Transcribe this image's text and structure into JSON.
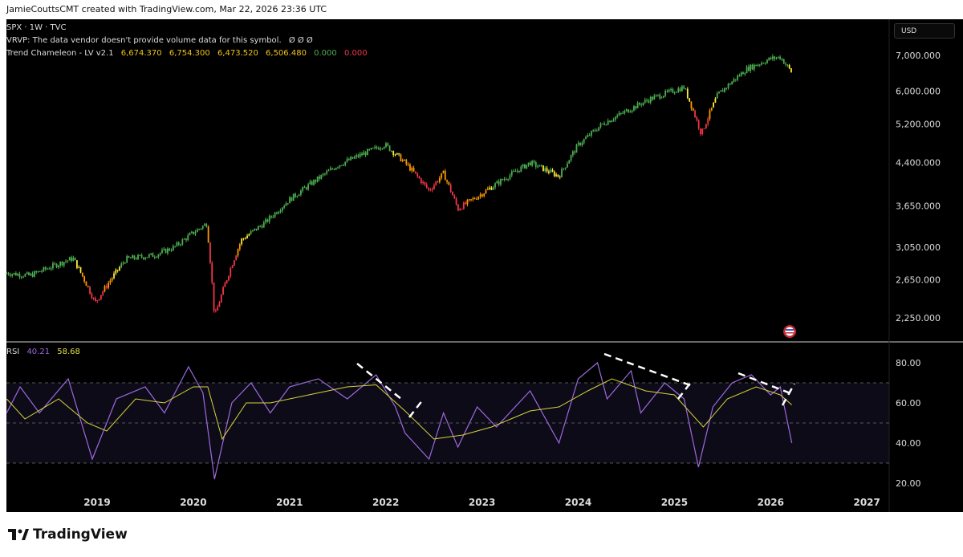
{
  "caption": "JamieCouttsCMT created with TradingView.com, Mar 22, 2026 23:36 UTC",
  "legend": {
    "symbol": "SPX · 1W · TVC",
    "vrvp": "VRVP: The data vendor doesn't provide volume data for this symbol.",
    "vrvp_values": "Ø  Ø  Ø",
    "indicator": "Trend Chameleon - LV v2.1",
    "indicator_values": [
      "6,674.370",
      "6,754.300",
      "6,473.520",
      "6,506.480"
    ],
    "indicator_extra": [
      "0.000",
      "0.000"
    ],
    "rsi_label": "RSI",
    "rsi_value": "40.21",
    "rsi_ma_value": "58.68"
  },
  "currency_button": "USD",
  "logo_text": "TradingView",
  "colors": {
    "bull": "#4caf50",
    "yellow": "#ffeb3b",
    "orange": "#ff9800",
    "red": "#f23645",
    "rsi": "#9c6ade",
    "rsi_ma": "#d4d43a",
    "extra_green": "#4caf50",
    "extra_red": "#f23645"
  },
  "chart_data": [
    {
      "type": "candlestick",
      "scale": "log",
      "ylim": [
        2100,
        7400
      ],
      "y_ticks": [
        "7,000.000",
        "6,000.000",
        "5,200.000",
        "4,400.000",
        "3,650.000",
        "3,050.000",
        "2,650.000",
        "2,250.000"
      ],
      "y_tick_values": [
        7000,
        6000,
        5200,
        4400,
        3650,
        3050,
        2650,
        2250
      ],
      "x_ticks": [
        "2019",
        "2020",
        "2021",
        "2022",
        "2023",
        "2024",
        "2025",
        "2026",
        "2027"
      ],
      "close_path": [
        [
          2018.06,
          2730
        ],
        [
          2018.3,
          2700
        ],
        [
          2018.75,
          2910
        ],
        [
          2018.98,
          2400
        ],
        [
          2019.3,
          2900
        ],
        [
          2019.6,
          2950
        ],
        [
          2019.8,
          3050
        ],
        [
          2020.0,
          3250
        ],
        [
          2020.14,
          3380
        ],
        [
          2020.22,
          2250
        ],
        [
          2020.5,
          3150
        ],
        [
          2020.75,
          3400
        ],
        [
          2021.0,
          3750
        ],
        [
          2021.5,
          4350
        ],
        [
          2021.99,
          4760
        ],
        [
          2022.2,
          4400
        ],
        [
          2022.45,
          3900
        ],
        [
          2022.6,
          4200
        ],
        [
          2022.75,
          3600
        ],
        [
          2023.0,
          3850
        ],
        [
          2023.5,
          4400
        ],
        [
          2023.8,
          4150
        ],
        [
          2024.0,
          4750
        ],
        [
          2024.25,
          5200
        ],
        [
          2024.5,
          5500
        ],
        [
          2024.75,
          5800
        ],
        [
          2025.1,
          6100
        ],
        [
          2025.28,
          4980
        ],
        [
          2025.45,
          5900
        ],
        [
          2025.75,
          6600
        ],
        [
          2026.0,
          6900
        ],
        [
          2026.1,
          6950
        ],
        [
          2026.22,
          6500
        ]
      ]
    },
    {
      "type": "line",
      "title": "RSI",
      "ylim": [
        15,
        85
      ],
      "y_ticks": [
        "80.00",
        "60.00",
        "40.00",
        "20.00"
      ],
      "y_tick_values": [
        80,
        60,
        40,
        20
      ],
      "bands": [
        30,
        50,
        70
      ],
      "series": [
        {
          "name": "RSI",
          "points": [
            [
              2018.06,
              55
            ],
            [
              2018.2,
              68
            ],
            [
              2018.4,
              55
            ],
            [
              2018.7,
              72
            ],
            [
              2018.95,
              32
            ],
            [
              2019.2,
              62
            ],
            [
              2019.5,
              68
            ],
            [
              2019.7,
              55
            ],
            [
              2019.95,
              78
            ],
            [
              2020.1,
              65
            ],
            [
              2020.22,
              22
            ],
            [
              2020.4,
              60
            ],
            [
              2020.6,
              70
            ],
            [
              2020.8,
              55
            ],
            [
              2021.0,
              68
            ],
            [
              2021.3,
              72
            ],
            [
              2021.6,
              62
            ],
            [
              2021.9,
              74
            ],
            [
              2022.1,
              58
            ],
            [
              2022.2,
              45
            ],
            [
              2022.45,
              32
            ],
            [
              2022.6,
              55
            ],
            [
              2022.75,
              38
            ],
            [
              2022.95,
              58
            ],
            [
              2023.15,
              48
            ],
            [
              2023.5,
              66
            ],
            [
              2023.8,
              40
            ],
            [
              2024.0,
              72
            ],
            [
              2024.2,
              80
            ],
            [
              2024.3,
              62
            ],
            [
              2024.55,
              76
            ],
            [
              2024.65,
              55
            ],
            [
              2024.9,
              70
            ],
            [
              2025.1,
              62
            ],
            [
              2025.25,
              28
            ],
            [
              2025.4,
              58
            ],
            [
              2025.6,
              70
            ],
            [
              2025.8,
              74
            ],
            [
              2026.0,
              64
            ],
            [
              2026.1,
              68
            ],
            [
              2026.22,
              40
            ]
          ]
        },
        {
          "name": "RSI MA",
          "points": [
            [
              2018.06,
              62
            ],
            [
              2018.25,
              52
            ],
            [
              2018.6,
              62
            ],
            [
              2018.9,
              50
            ],
            [
              2019.1,
              46
            ],
            [
              2019.4,
              62
            ],
            [
              2019.7,
              60
            ],
            [
              2020.0,
              68
            ],
            [
              2020.15,
              68
            ],
            [
              2020.3,
              42
            ],
            [
              2020.55,
              60
            ],
            [
              2020.8,
              60
            ],
            [
              2021.2,
              64
            ],
            [
              2021.6,
              68
            ],
            [
              2021.9,
              69
            ],
            [
              2022.2,
              56
            ],
            [
              2022.5,
              42
            ],
            [
              2022.8,
              44
            ],
            [
              2023.1,
              48
            ],
            [
              2023.5,
              56
            ],
            [
              2023.8,
              58
            ],
            [
              2024.1,
              66
            ],
            [
              2024.35,
              72
            ],
            [
              2024.7,
              66
            ],
            [
              2025.0,
              64
            ],
            [
              2025.3,
              48
            ],
            [
              2025.55,
              62
            ],
            [
              2025.85,
              68
            ],
            [
              2026.1,
              64
            ],
            [
              2026.22,
              59
            ]
          ]
        }
      ]
    }
  ]
}
